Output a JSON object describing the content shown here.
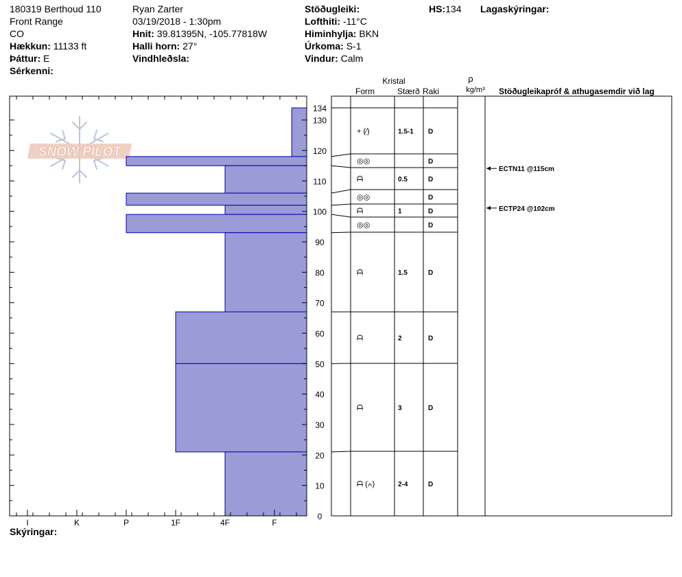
{
  "header": {
    "col1": {
      "site": "180319 Berthoud 110",
      "range": "Front Range",
      "state": "CO",
      "elevation_label": "Hækkun:",
      "elevation": "11133 ft",
      "aspect_label": "Þáttur:",
      "aspect": "E",
      "features_label": "Sérkenni:"
    },
    "col2": {
      "observer": "Ryan Zarter",
      "datetime": "03/19/2018 - 1:30pm",
      "coords_label": "Hnit:",
      "coords": "39.81395N, -105.77818W",
      "slope_label": "Halli horn:",
      "slope": "27°",
      "wind_loading_label": "Vindhleðsla:"
    },
    "col3": {
      "stability_label": "Stöðugleiki:",
      "air_temp_label": "Lofthiti:",
      "air_temp": "-11°C",
      "sky_label": "Himinhylja:",
      "sky": "BKN",
      "precip_label": "Úrkoma:",
      "precip": "S-1",
      "wind_label": "Vindur:",
      "wind": "Calm"
    },
    "col4": {
      "hs_label": "HS:",
      "hs": "134"
    },
    "col5": {
      "layer_notes_label": "Lagaskýringar:"
    }
  },
  "columns": {
    "crystal": "Kristal",
    "form": "Form",
    "size": "Stærð",
    "moisture": "Raki",
    "rho": "ρ",
    "density_unit": "kg/m³",
    "tests": "Stöðugleikapróf & athugasemdir við lag"
  },
  "footer": {
    "legend_label": "Skýringar:"
  },
  "logo_text": "SNOW PILOT",
  "colors": {
    "bar_fill": "#9b9bd7",
    "bar_stroke": "#0000aa"
  },
  "chart_data": {
    "type": "bar",
    "orientation": "horizontal",
    "ylabel": "",
    "ylim": [
      0,
      134
    ],
    "y_ticks": [
      0,
      10,
      20,
      30,
      40,
      50,
      60,
      70,
      80,
      90,
      100,
      110,
      120,
      130,
      134
    ],
    "hardness_ticks": [
      "I",
      "K",
      "P",
      "1F",
      "4F",
      "F"
    ],
    "hardness_scale": [
      {
        "label": "F",
        "value": 1
      },
      {
        "label": "4F",
        "value": 2
      },
      {
        "label": "1F",
        "value": 3
      },
      {
        "label": "P",
        "value": 4
      },
      {
        "label": "K",
        "value": 5
      },
      {
        "label": "I",
        "value": 6
      }
    ],
    "layers": [
      {
        "top": 134,
        "bottom": 118,
        "hardness": 0.65,
        "form": "+ (⁄)",
        "size": "1.5-1",
        "moisture": "D"
      },
      {
        "top": 118,
        "bottom": 115,
        "hardness": 4,
        "form": "◎◎",
        "size": "",
        "moisture": "D"
      },
      {
        "top": 115,
        "bottom": 106,
        "hardness": 2,
        "form": "ᗩ",
        "size": "0.5",
        "moisture": "D"
      },
      {
        "top": 106,
        "bottom": 102,
        "hardness": 4,
        "form": "◎◎",
        "size": "",
        "moisture": "D"
      },
      {
        "top": 102,
        "bottom": 99,
        "hardness": 2,
        "form": "ᗩ",
        "size": "1",
        "moisture": "D"
      },
      {
        "top": 99,
        "bottom": 93,
        "hardness": 4,
        "form": "◎◎",
        "size": "",
        "moisture": "D"
      },
      {
        "top": 93,
        "bottom": 67,
        "hardness": 2,
        "form": "ᗩ",
        "size": "1.5",
        "moisture": "D"
      },
      {
        "top": 67,
        "bottom": 50,
        "hardness": 3,
        "form": "ᗩ",
        "size": "2",
        "moisture": "D"
      },
      {
        "top": 50,
        "bottom": 21,
        "hardness": 3,
        "form": "ᗩ",
        "size": "3",
        "moisture": "D"
      },
      {
        "top": 21,
        "bottom": 0,
        "hardness": 2,
        "form": "ᗩ (∧)",
        "size": "2-4",
        "moisture": "D"
      }
    ],
    "tests": [
      {
        "height": 115,
        "label": "ECTN11 @115cm"
      },
      {
        "height": 102,
        "label": "ECTP24 @102cm"
      }
    ]
  }
}
